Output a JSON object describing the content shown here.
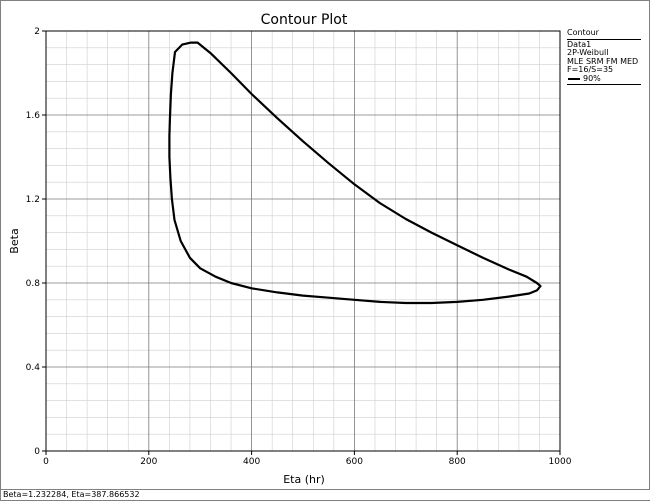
{
  "chart_data": {
    "type": "line",
    "title": "Contour Plot",
    "xlabel": "Eta (hr)",
    "ylabel": "Beta",
    "xlim": [
      0,
      1000
    ],
    "ylim": [
      0,
      2
    ],
    "xticks": [
      "0",
      "200",
      "400",
      "600",
      "800",
      "1000"
    ],
    "yticks": [
      "0",
      "0.4",
      "0.8",
      "1.2",
      "1.6",
      "2"
    ],
    "grid": true,
    "legend": {
      "position": "right",
      "title": "Contour",
      "lines": [
        "Data1",
        "2P-Weibull",
        "MLE SRM FM MED",
        "F=16/S=35"
      ],
      "series_label": "90%"
    },
    "series": [
      {
        "name": "90%",
        "closed": true,
        "points": [
          [
            282,
            1.945
          ],
          [
            295,
            1.945
          ],
          [
            320,
            1.895
          ],
          [
            360,
            1.8
          ],
          [
            400,
            1.7
          ],
          [
            450,
            1.585
          ],
          [
            500,
            1.475
          ],
          [
            550,
            1.37
          ],
          [
            600,
            1.27
          ],
          [
            650,
            1.18
          ],
          [
            700,
            1.105
          ],
          [
            750,
            1.04
          ],
          [
            800,
            0.98
          ],
          [
            850,
            0.92
          ],
          [
            900,
            0.865
          ],
          [
            935,
            0.83
          ],
          [
            955,
            0.8
          ],
          [
            962,
            0.785
          ],
          [
            955,
            0.765
          ],
          [
            940,
            0.75
          ],
          [
            900,
            0.735
          ],
          [
            850,
            0.72
          ],
          [
            800,
            0.71
          ],
          [
            750,
            0.705
          ],
          [
            700,
            0.705
          ],
          [
            650,
            0.71
          ],
          [
            600,
            0.72
          ],
          [
            550,
            0.73
          ],
          [
            500,
            0.74
          ],
          [
            450,
            0.755
          ],
          [
            400,
            0.775
          ],
          [
            360,
            0.8
          ],
          [
            330,
            0.83
          ],
          [
            300,
            0.87
          ],
          [
            280,
            0.92
          ],
          [
            262,
            1.0
          ],
          [
            256,
            1.05
          ],
          [
            250,
            1.1
          ],
          [
            245,
            1.2
          ],
          [
            242,
            1.3
          ],
          [
            240,
            1.4
          ],
          [
            240,
            1.5
          ],
          [
            241,
            1.58
          ],
          [
            243,
            1.7
          ],
          [
            246,
            1.8
          ],
          [
            251,
            1.9
          ],
          [
            265,
            1.935
          ],
          [
            282,
            1.945
          ]
        ]
      }
    ]
  },
  "status": "Beta=1.232284, Eta=387.866532",
  "colors": {
    "grid_major": "#7a7a7a",
    "grid_minor": "#cfcfcf",
    "line": "#000000",
    "frame": "#808080"
  }
}
